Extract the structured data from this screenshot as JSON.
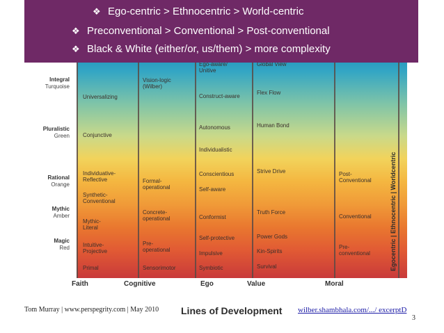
{
  "banner": {
    "bullets": [
      {
        "icon": "diamond-bullet",
        "text": "Ego-centric  >  Ethnocentric  > World-centric"
      },
      {
        "icon": "diamond-bullet",
        "text": "Preconventional  > Conventional  > Post-conventional"
      },
      {
        "icon": "diamond-bullet",
        "text": "Black & White (either/or, us/them) > more complexity"
      }
    ]
  },
  "levels": {
    "integral": {
      "title": "Integral",
      "color": "Turquoise"
    },
    "pluralistic": {
      "title": "Pluralistic",
      "color": "Green"
    },
    "rational": {
      "title": "Rational",
      "color": "Orange"
    },
    "mythic": {
      "title": "Mythic",
      "color": "Amber"
    },
    "magic": {
      "title": "Magic",
      "color": "Red"
    }
  },
  "faith": {
    "universalizing": "Universalizing",
    "conjunctive": "Conjunctive",
    "individuative": "Individuative-\nReflective",
    "synthetic": "Synthetic-\nConventional",
    "mythic_literal": "Mythic-\nLiteral",
    "intuitive": "Intuitive-\nProjective",
    "primal": "Primal"
  },
  "cognitive": {
    "vision_logic": "Vision-logic\n(Wilber)",
    "formal": "Formal-\noperational",
    "concrete": "Concrete-\noperational",
    "pre": "Pre-\noperational",
    "sensorimotor": "Sensorimotor"
  },
  "ego": {
    "ego_aware": "Ego-aware/\nUnitive",
    "construct": "Construct-aware",
    "autonomous": "Autonomous",
    "individualistic": "Individualistic",
    "conscientious": "Conscientious",
    "self_aware": "Self-aware",
    "conformist": "Conformist",
    "self_protective": "Self-protective",
    "impulsive": "Impulsive",
    "symbiotic": "Symbiotic"
  },
  "value": {
    "global": "Global View",
    "flex": "Flex Flow",
    "human": "Human Bond",
    "strive": "Strive Drive",
    "truth": "Truth Force",
    "power": "Power Gods",
    "kin": "Kin-Spirits",
    "survival": "Survival"
  },
  "moral": {
    "post": "Post-\nConventional",
    "conventional": "Conventional",
    "pre": "Pre-\nconventional"
  },
  "side_label": "Egocentric  |  Ethnocentric  |  Worldcentric",
  "columns": {
    "faith": "Faith",
    "cognitive": "Cognitive",
    "ego": "Ego",
    "value": "Value",
    "moral": "Moral"
  },
  "lines_title": "Lines of Development",
  "footer": {
    "left": "Tom Murray | www.perspegrity.com  |  May 2010",
    "link": "wilber.shambhala.com/.../ excerptD",
    "page": "3"
  },
  "colors": {
    "banner": "#6f2966",
    "link": "#1a1aa6"
  }
}
